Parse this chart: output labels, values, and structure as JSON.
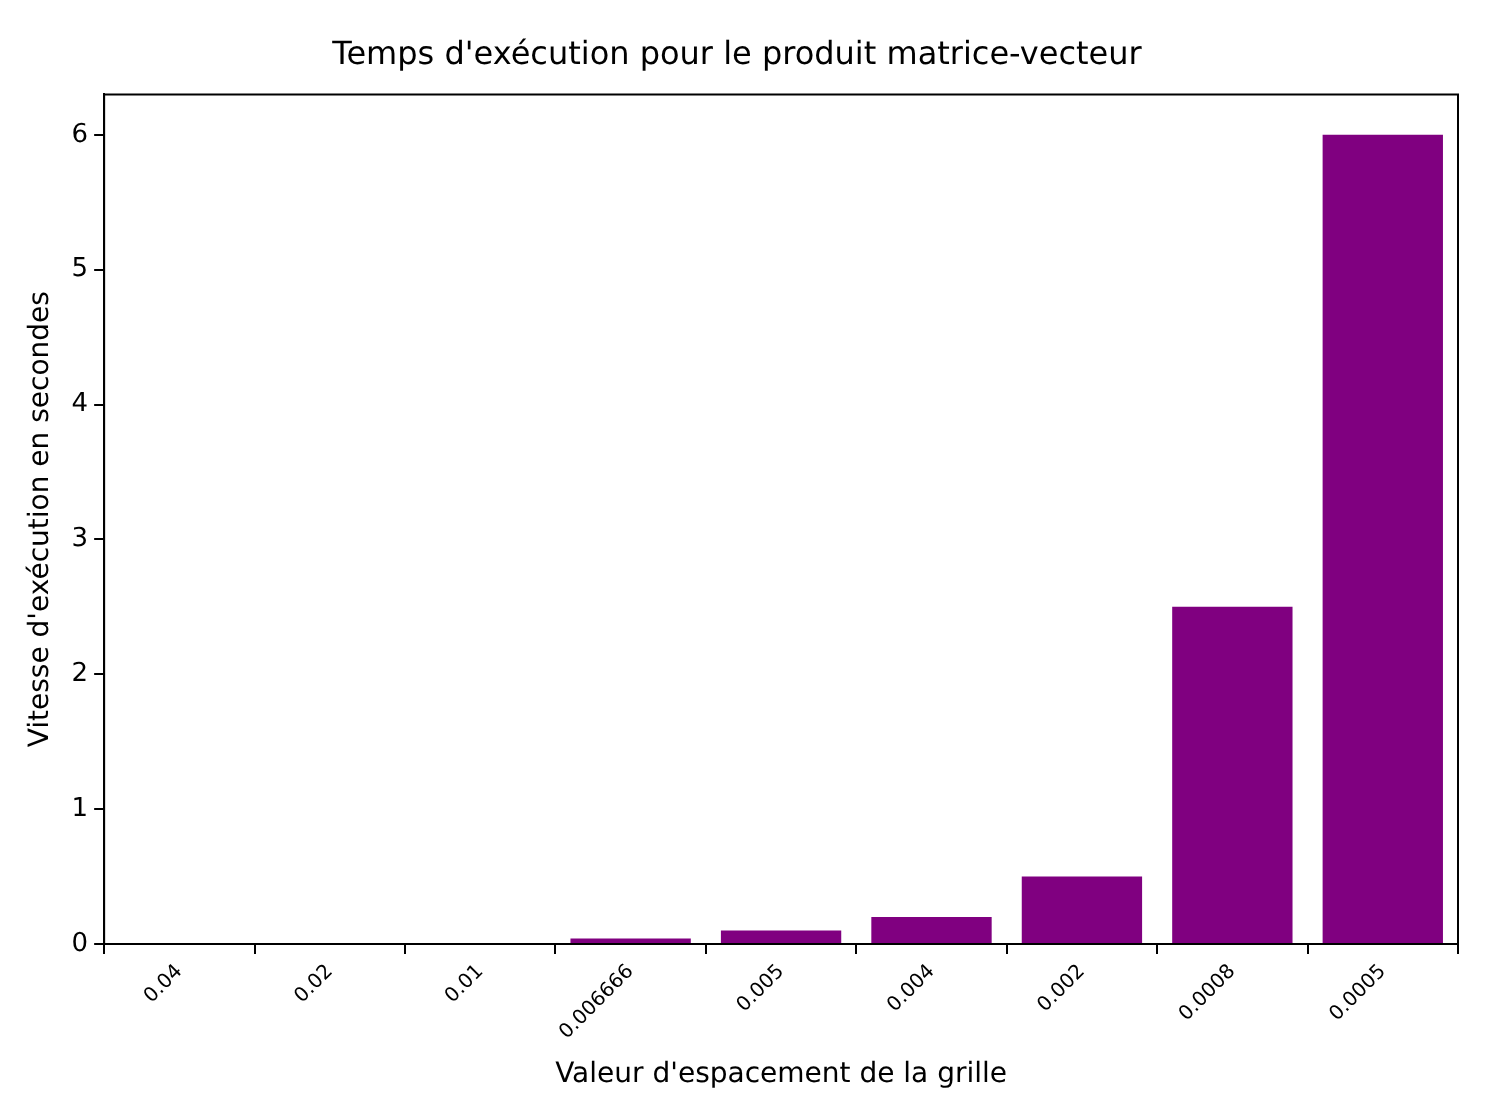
{
  "chart_data": {
    "type": "bar",
    "title": "Temps d'exécution pour le produit matrice-vecteur",
    "xlabel": "Valeur d'espacement de la grille",
    "ylabel": "Vitesse d'exécution en secondes",
    "categories": [
      "0.04",
      "0.02",
      "0.01",
      "0.006666",
      "0.005",
      "0.004",
      "0.002",
      "0.0008",
      "0.0005"
    ],
    "values": [
      0,
      0,
      0,
      0.04,
      0.1,
      0.2,
      0.5,
      2.5,
      6.0
    ],
    "color": "#800080",
    "ylim": [
      0,
      6.3
    ],
    "yticks": [
      0,
      1,
      2,
      3,
      4,
      5,
      6
    ],
    "grid": false
  }
}
